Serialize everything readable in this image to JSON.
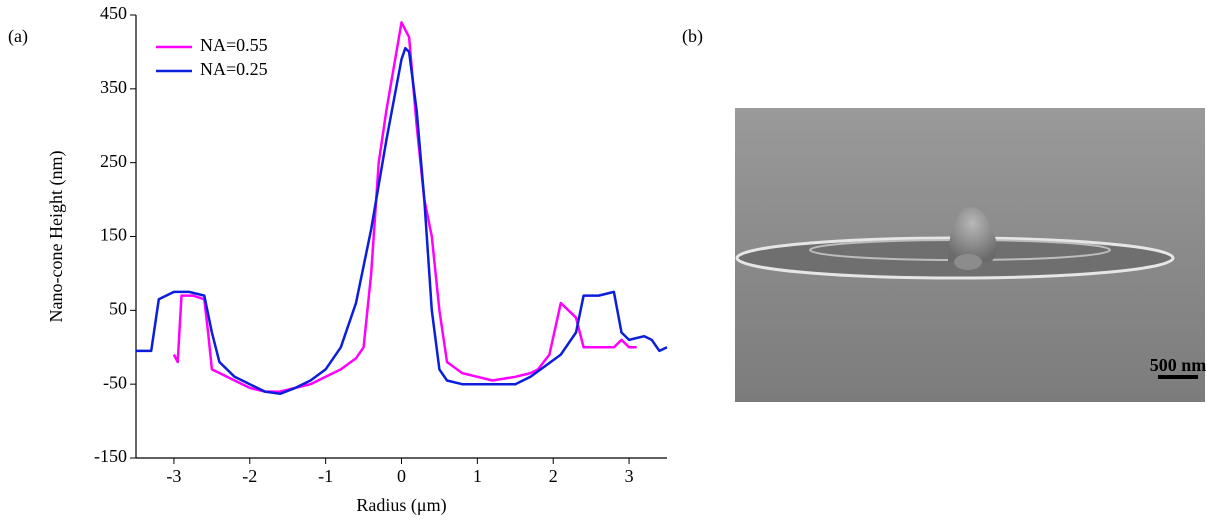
{
  "chart_data": {
    "type": "line",
    "panel_label": "(a)",
    "x_label": "Radius (μm)",
    "y_label": "Nano-cone Height (nm)",
    "xlim": [
      -3.5,
      3.5
    ],
    "ylim": [
      -150,
      450
    ],
    "xticks": [
      -3,
      -2,
      -1,
      0,
      1,
      2,
      3
    ],
    "yticks": [
      -150,
      -50,
      50,
      150,
      250,
      350,
      450
    ],
    "legend": "upper left",
    "series": [
      {
        "name": "NA=0.55",
        "color": "#ff00ff",
        "x": [
          -3.0,
          -2.95,
          -2.9,
          -2.75,
          -2.6,
          -2.55,
          -2.5,
          -2.3,
          -2.0,
          -1.8,
          -1.6,
          -1.4,
          -1.2,
          -1.0,
          -0.8,
          -0.6,
          -0.5,
          -0.4,
          -0.3,
          -0.2,
          -0.1,
          0.0,
          0.1,
          0.2,
          0.3,
          0.4,
          0.5,
          0.6,
          0.8,
          1.0,
          1.2,
          1.5,
          1.7,
          1.8,
          1.95,
          2.1,
          2.2,
          2.3,
          2.4,
          2.6,
          2.8,
          2.9,
          3.0,
          3.1
        ],
        "values": [
          -10,
          -20,
          70,
          70,
          65,
          20,
          -30,
          -40,
          -55,
          -60,
          -60,
          -55,
          -50,
          -40,
          -30,
          -15,
          0,
          100,
          250,
          320,
          380,
          440,
          420,
          300,
          200,
          150,
          50,
          -20,
          -35,
          -40,
          -45,
          -40,
          -35,
          -30,
          -10,
          60,
          50,
          40,
          0,
          0,
          0,
          10,
          0,
          0
        ]
      },
      {
        "name": "NA=0.25",
        "color": "#0a1edc",
        "x": [
          -3.5,
          -3.3,
          -3.2,
          -3.0,
          -2.8,
          -2.6,
          -2.5,
          -2.4,
          -2.2,
          -2.0,
          -1.8,
          -1.6,
          -1.4,
          -1.2,
          -1.0,
          -0.8,
          -0.6,
          -0.4,
          -0.2,
          0.0,
          0.05,
          0.1,
          0.2,
          0.3,
          0.4,
          0.5,
          0.6,
          0.8,
          1.0,
          1.2,
          1.5,
          1.7,
          1.9,
          2.1,
          2.3,
          2.4,
          2.6,
          2.8,
          2.9,
          3.0,
          3.2,
          3.3,
          3.4,
          3.5
        ],
        "values": [
          -5,
          -5,
          65,
          75,
          75,
          70,
          20,
          -20,
          -40,
          -50,
          -60,
          -63,
          -55,
          -45,
          -30,
          0,
          60,
          160,
          280,
          390,
          405,
          400,
          320,
          200,
          50,
          -30,
          -45,
          -50,
          -50,
          -50,
          -50,
          -40,
          -25,
          -10,
          20,
          70,
          70,
          75,
          20,
          10,
          15,
          10,
          -5,
          0
        ]
      }
    ]
  },
  "image": {
    "panel_label": "(b)",
    "scale_bar": "500 nm"
  }
}
